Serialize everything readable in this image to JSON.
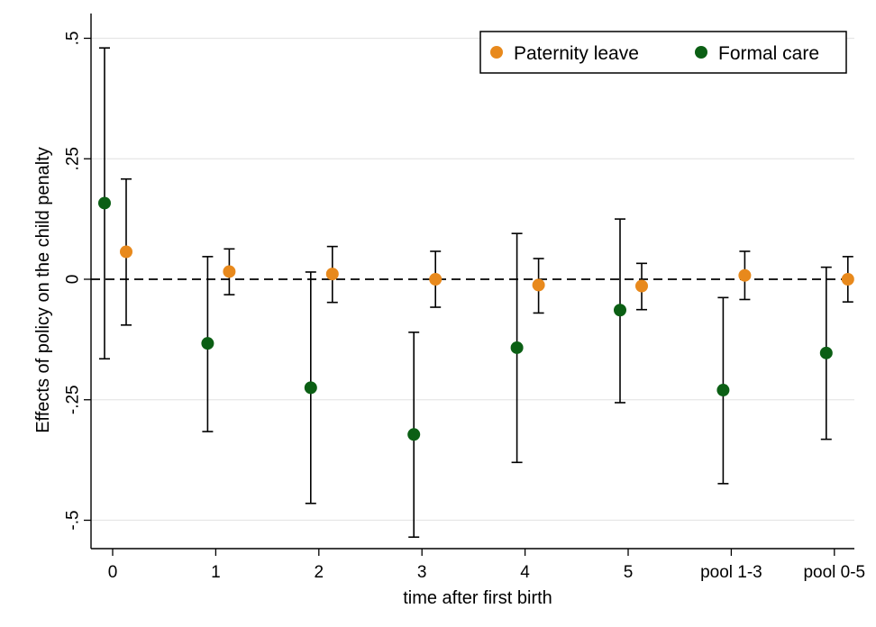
{
  "chart_data": {
    "type": "scatter",
    "categories": [
      "0",
      "1",
      "2",
      "3",
      "4",
      "5",
      "pool 1-3",
      "pool 0-5"
    ],
    "xlabel": "time after first birth",
    "ylabel": "Effects of policy on the child penalty",
    "ylim": [
      -0.56,
      0.5
    ],
    "yticks": [
      0.5,
      0.25,
      0,
      -0.25,
      -0.5
    ],
    "ytick_labels": [
      ".5",
      ".25",
      "0",
      "-.25",
      "-.5"
    ],
    "grid": true,
    "reference_line": {
      "y": 0,
      "style": "dashed"
    },
    "legend": "top-right",
    "error_bars": "confidence intervals",
    "series": [
      {
        "name": "Paternity leave",
        "color": "#e8891c",
        "values": [
          0.057,
          0.016,
          0.011,
          0.0,
          -0.012,
          -0.014,
          0.008,
          0.0
        ],
        "ci_low": [
          -0.095,
          -0.032,
          -0.048,
          -0.058,
          -0.07,
          -0.063,
          -0.042,
          -0.047
        ],
        "ci_high": [
          0.208,
          0.063,
          0.068,
          0.058,
          0.043,
          0.033,
          0.058,
          0.047
        ]
      },
      {
        "name": "Formal care",
        "color": "#0b5f14",
        "values": [
          0.158,
          -0.133,
          -0.225,
          -0.322,
          -0.142,
          -0.064,
          -0.23,
          -0.153
        ],
        "ci_low": [
          -0.165,
          -0.316,
          -0.465,
          -0.535,
          -0.38,
          -0.256,
          -0.424,
          -0.332
        ],
        "ci_high": [
          0.48,
          0.047,
          0.015,
          -0.11,
          0.095,
          0.125,
          -0.038,
          0.025
        ]
      }
    ]
  }
}
